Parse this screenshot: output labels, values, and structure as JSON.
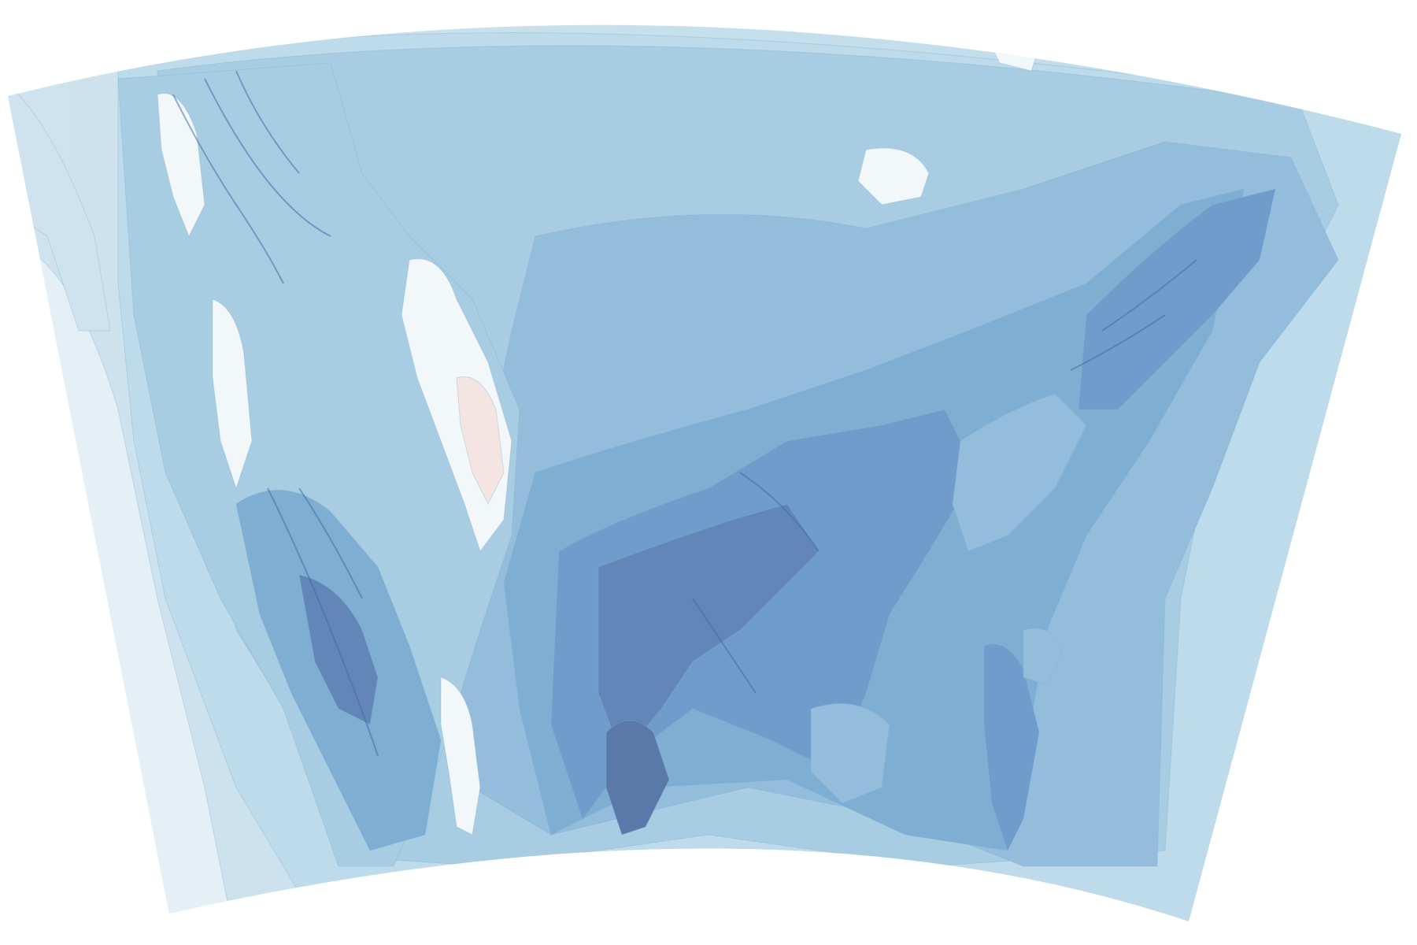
{
  "map": {
    "kind": "contour-filled",
    "projection_shape": "conic-fan",
    "palette": {
      "ocean_light": "#e4f0f6",
      "ocean_mid": "#cfe3ee",
      "level_1": "#bddbea",
      "level_2": "#a8cde3",
      "level_3": "#93bddb",
      "level_4": "#7faed3",
      "level_5": "#6f9ccb",
      "level_6": "#6286b8",
      "level_7": "#5a79a8",
      "highlight_white": "#f2f7fa",
      "highlight_pink": "#f4e4e2",
      "stream_dark": "#3f6fa7"
    }
  }
}
